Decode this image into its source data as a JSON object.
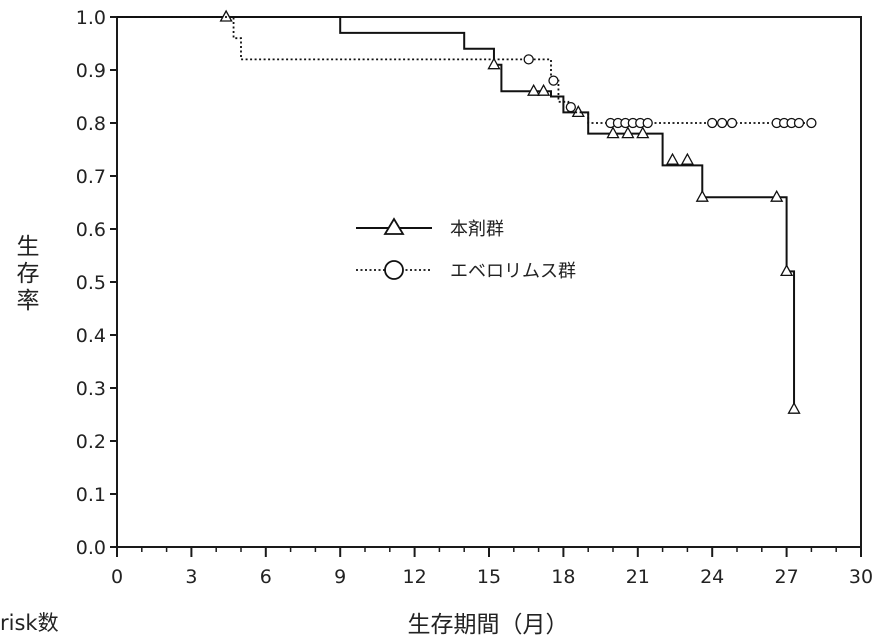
{
  "chart_data": {
    "type": "line",
    "subtype": "kaplan-meier",
    "title": "",
    "xlabel": "生存期間（月）",
    "ylabel": "生存率",
    "xlim": [
      0,
      30
    ],
    "ylim": [
      0,
      1.0
    ],
    "xticks": [
      "0",
      "3",
      "6",
      "9",
      "12",
      "15",
      "18",
      "21",
      "24",
      "27",
      "30"
    ],
    "yticks": [
      "0.0",
      "0.1",
      "0.2",
      "0.3",
      "0.4",
      "0.5",
      "0.6",
      "0.7",
      "0.8",
      "0.9",
      "1.0"
    ],
    "grid": false,
    "legend_position": "center",
    "series": [
      {
        "name": "本剤群",
        "line_style": "solid",
        "marker": "triangle",
        "color": "#111111",
        "steps": [
          [
            0,
            1.0
          ],
          [
            9.0,
            0.97
          ],
          [
            14.0,
            0.94
          ],
          [
            15.2,
            0.91
          ],
          [
            15.5,
            0.86
          ],
          [
            17.5,
            0.85
          ],
          [
            18.0,
            0.82
          ],
          [
            19.0,
            0.78
          ],
          [
            22.0,
            0.72
          ],
          [
            23.6,
            0.66
          ],
          [
            27.0,
            0.52
          ],
          [
            27.3,
            0.26
          ]
        ],
        "censored": [
          [
            4.4,
            1.0
          ],
          [
            15.2,
            0.91
          ],
          [
            16.8,
            0.86
          ],
          [
            17.2,
            0.86
          ],
          [
            18.6,
            0.82
          ],
          [
            20.0,
            0.78
          ],
          [
            20.6,
            0.78
          ],
          [
            21.2,
            0.78
          ],
          [
            22.4,
            0.73
          ],
          [
            23.0,
            0.73
          ],
          [
            23.6,
            0.66
          ],
          [
            26.6,
            0.66
          ],
          [
            27.0,
            0.52
          ],
          [
            27.3,
            0.26
          ]
        ]
      },
      {
        "name": "エベロリムス群",
        "line_style": "dotted",
        "marker": "circle",
        "color": "#111111",
        "steps": [
          [
            0,
            1.0
          ],
          [
            4.7,
            0.96
          ],
          [
            5.0,
            0.92
          ],
          [
            17.5,
            0.88
          ],
          [
            17.8,
            0.84
          ],
          [
            18.2,
            0.82
          ],
          [
            19.0,
            0.8
          ]
        ],
        "censored": [
          [
            16.6,
            0.92
          ],
          [
            17.6,
            0.88
          ],
          [
            18.3,
            0.83
          ],
          [
            19.9,
            0.8
          ],
          [
            20.2,
            0.8
          ],
          [
            20.5,
            0.8
          ],
          [
            20.8,
            0.8
          ],
          [
            21.1,
            0.8
          ],
          [
            21.4,
            0.8
          ],
          [
            24.0,
            0.8
          ],
          [
            24.4,
            0.8
          ],
          [
            24.8,
            0.8
          ],
          [
            26.6,
            0.8
          ],
          [
            26.9,
            0.8
          ],
          [
            27.2,
            0.8
          ],
          [
            27.5,
            0.8
          ],
          [
            28.0,
            0.8
          ]
        ]
      }
    ]
  },
  "footer": {
    "risk_label": "risk数"
  }
}
